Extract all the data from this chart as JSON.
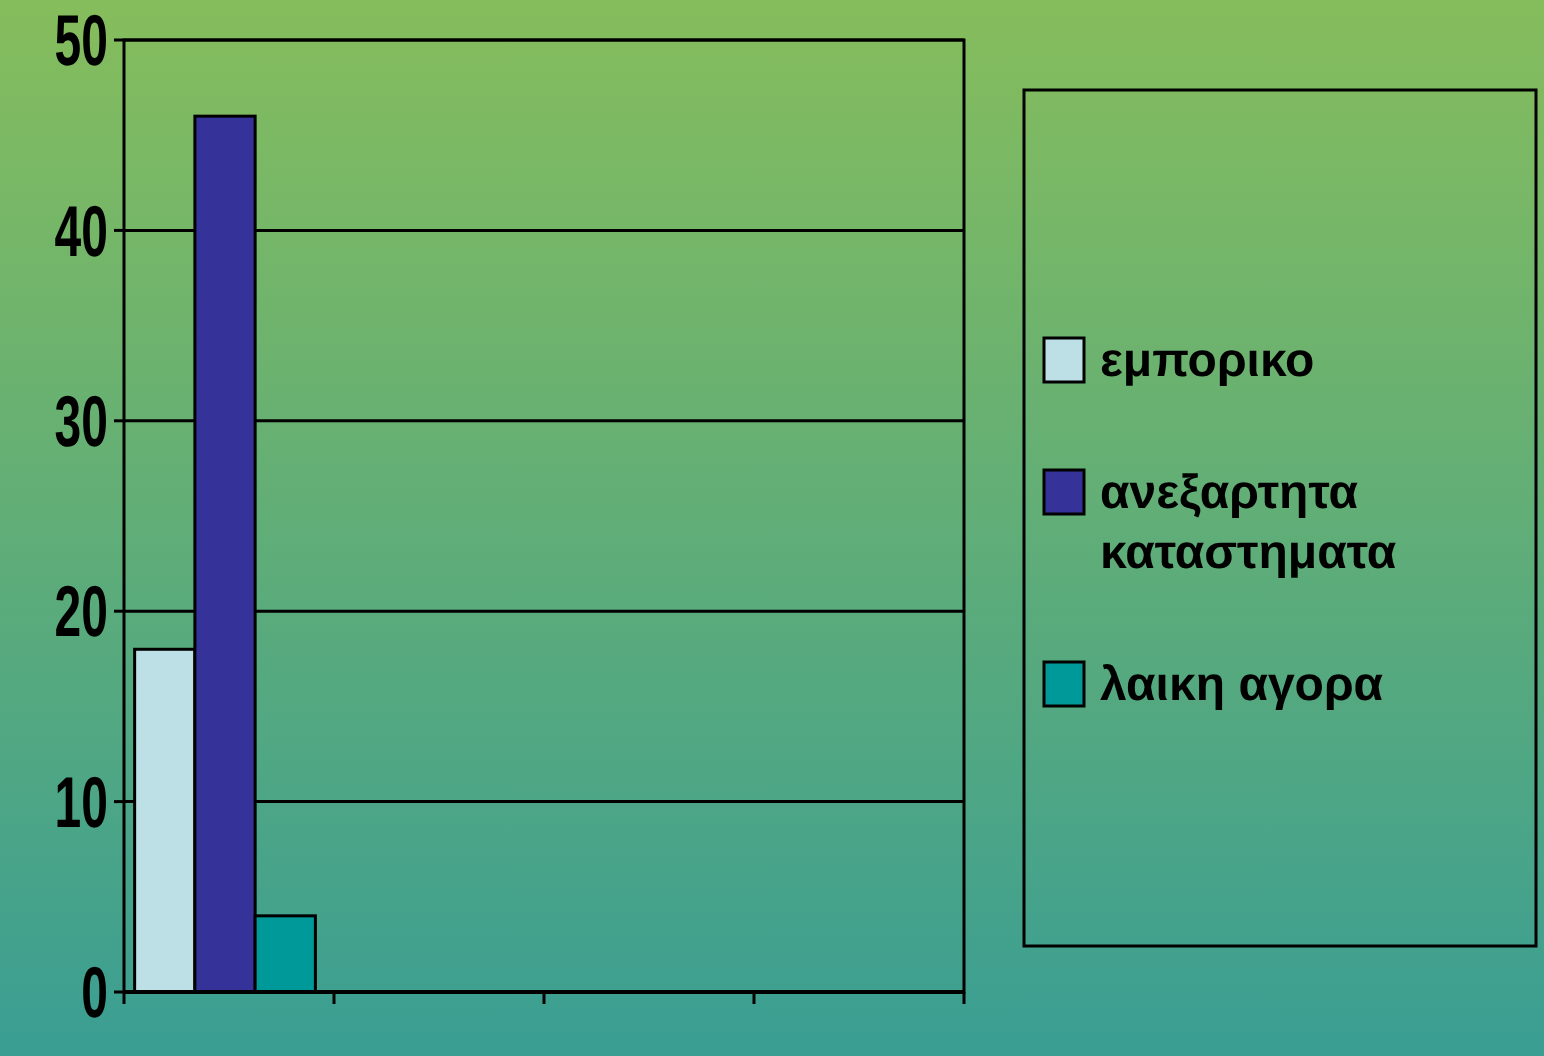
{
  "chart_data": {
    "type": "bar",
    "categories": [
      null,
      null,
      null,
      null
    ],
    "series": [
      {
        "name": "εμπορικο",
        "color": "#bde0e6",
        "values": [
          18,
          null,
          null,
          null
        ]
      },
      {
        "name": "ανεξαρτητα καταστηματα",
        "color": "#353399",
        "values": [
          46,
          null,
          null,
          null
        ]
      },
      {
        "name": "λαικη αγορα",
        "color": "#009999",
        "values": [
          4,
          null,
          null,
          null
        ]
      }
    ],
    "ylim": [
      0,
      50
    ],
    "yticks": [
      0,
      10,
      20,
      30,
      40,
      50
    ],
    "grid": "y",
    "legend": "right"
  }
}
